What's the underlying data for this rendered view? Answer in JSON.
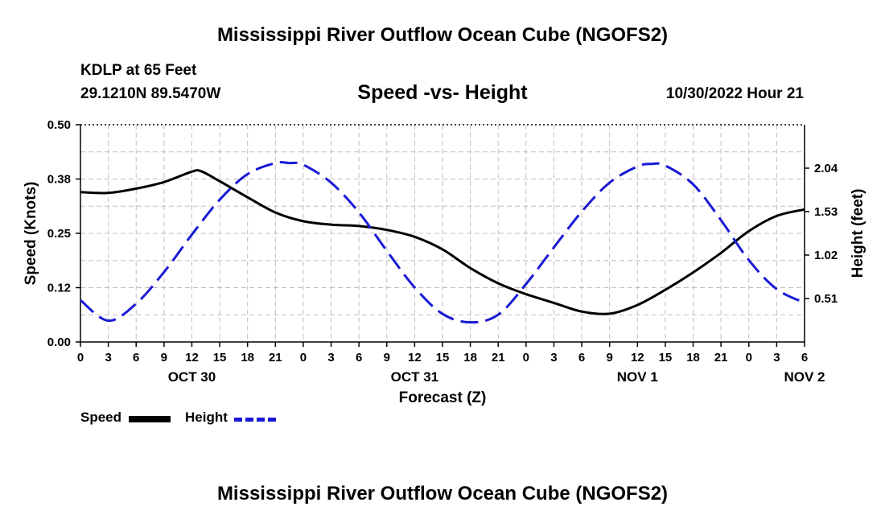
{
  "title": "Mississippi River Outflow Ocean Cube (NGOFS2)",
  "station": "KDLP at 65 Feet",
  "coords": "29.1210N  89.5470W",
  "subtitle": "Speed -vs- Height",
  "datetime": "10/30/2022 Hour 21",
  "footer_title": "Mississippi River Outflow Ocean Cube (NGOFS2)",
  "legend": {
    "speed_label": "Speed",
    "height_label": "Height"
  },
  "colors": {
    "speed": "#000000",
    "height": "#1a1ad6",
    "grid": "#bfbfbf"
  },
  "chart_data": {
    "type": "line",
    "xlabel": "Forecast (Z)",
    "ylabel": "Speed (Knots)",
    "y2label": "Height (feet)",
    "xlim": [
      0,
      78
    ],
    "ylim": [
      0,
      0.5
    ],
    "y2lim": [
      0.0,
      2.55
    ],
    "x_tick_labels": [
      "0",
      "3",
      "6",
      "9",
      "12",
      "15",
      "18",
      "21",
      "0",
      "3",
      "6",
      "9",
      "12",
      "15",
      "18",
      "21",
      "0",
      "3",
      "6",
      "9",
      "12",
      "15",
      "18",
      "21",
      "0",
      "3",
      "6"
    ],
    "date_labels": [
      {
        "text": "OCT 30",
        "x": 12
      },
      {
        "text": "OCT 31",
        "x": 36
      },
      {
        "text": "NOV 1",
        "x": 60
      },
      {
        "text": "NOV 2",
        "x": 78
      }
    ],
    "y_ticks": [
      "0.00",
      "0.12",
      "0.25",
      "0.38",
      "0.50"
    ],
    "y_tick_values": [
      0,
      0.125,
      0.25,
      0.375,
      0.5
    ],
    "y2_ticks": [
      "0.51",
      "1.02",
      "1.53",
      "2.04"
    ],
    "y2_tick_values": [
      0.51,
      1.02,
      1.53,
      2.04
    ],
    "series": [
      {
        "name": "Speed",
        "axis": "left",
        "x": [
          0,
          3,
          6,
          9,
          12,
          13,
          15,
          18,
          21,
          24,
          27,
          30,
          33,
          36,
          39,
          42,
          45,
          48,
          51,
          54,
          57,
          60,
          63,
          66,
          69,
          72,
          75,
          78
        ],
        "values": [
          0.345,
          0.343,
          0.353,
          0.368,
          0.392,
          0.393,
          0.37,
          0.333,
          0.298,
          0.278,
          0.27,
          0.267,
          0.258,
          0.242,
          0.213,
          0.17,
          0.135,
          0.11,
          0.09,
          0.07,
          0.065,
          0.085,
          0.12,
          0.16,
          0.205,
          0.255,
          0.29,
          0.305
        ]
      },
      {
        "name": "Height",
        "axis": "right",
        "x": [
          0,
          3,
          6,
          9,
          12,
          15,
          18,
          21,
          22.5,
          24,
          27,
          30,
          33,
          36,
          39,
          42,
          45,
          48,
          51,
          54,
          57,
          60,
          61.5,
          63,
          66,
          69,
          72,
          75,
          78
        ],
        "values": [
          0.49,
          0.25,
          0.45,
          0.82,
          1.26,
          1.67,
          1.97,
          2.1,
          2.1,
          2.08,
          1.87,
          1.52,
          1.07,
          0.64,
          0.33,
          0.23,
          0.32,
          0.68,
          1.11,
          1.53,
          1.87,
          2.06,
          2.09,
          2.07,
          1.85,
          1.43,
          0.96,
          0.62,
          0.46
        ]
      }
    ]
  }
}
